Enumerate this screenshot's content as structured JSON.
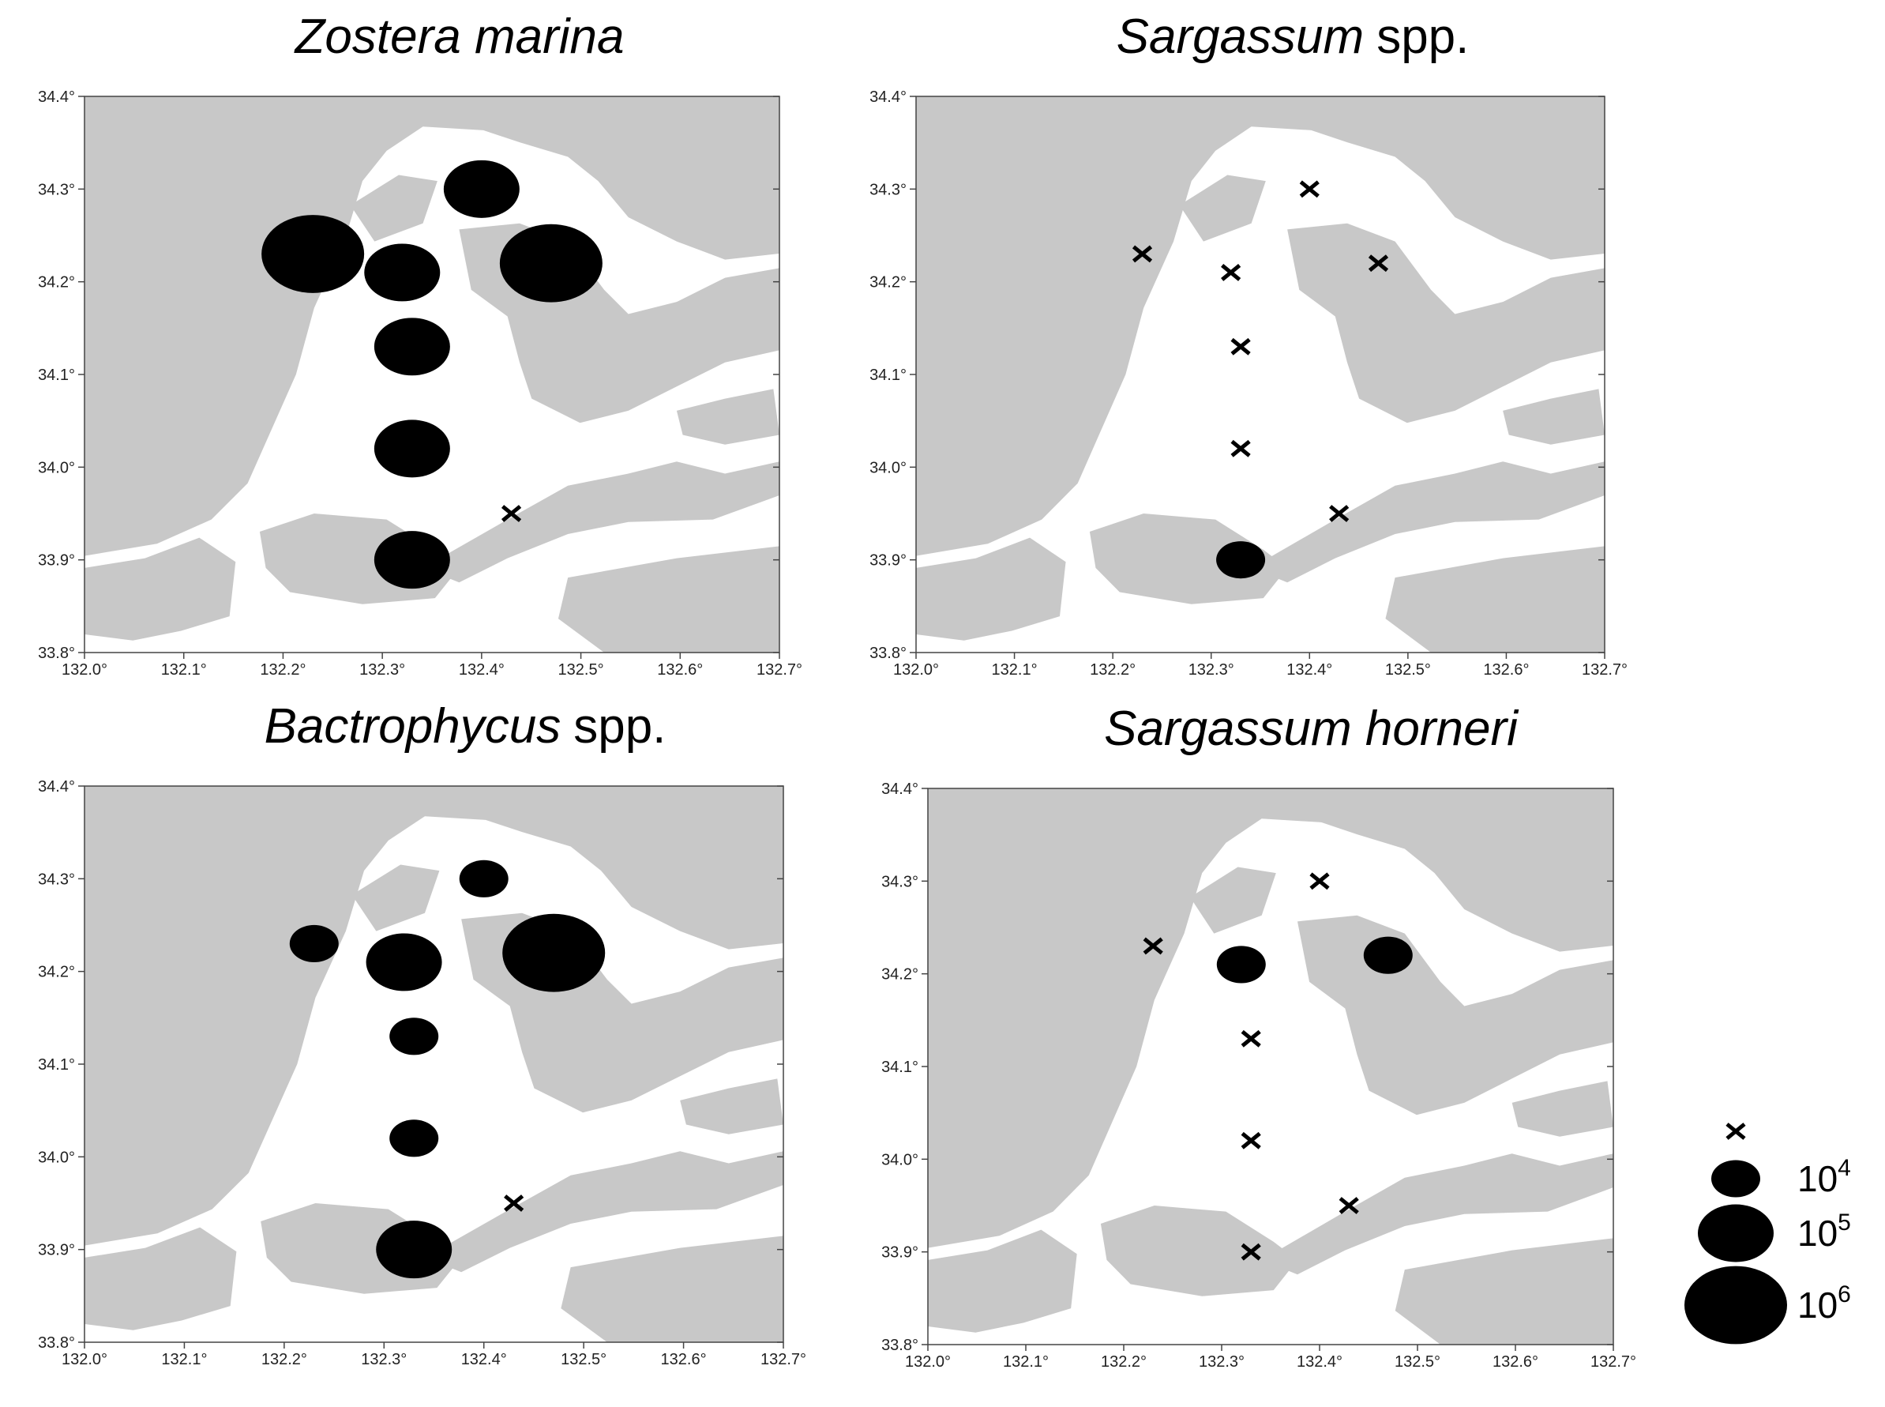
{
  "lon_lim": [
    132.0,
    132.7
  ],
  "lat_lim": [
    33.8,
    34.4
  ],
  "xticks": [
    {
      "value": 132.0,
      "label": "132.0°"
    },
    {
      "value": 132.1,
      "label": "132.1°"
    },
    {
      "value": 132.2,
      "label": "132.2°"
    },
    {
      "value": 132.3,
      "label": "132.3°"
    },
    {
      "value": 132.4,
      "label": "132.4°"
    },
    {
      "value": 132.5,
      "label": "132.5°"
    },
    {
      "value": 132.6,
      "label": "132.6°"
    },
    {
      "value": 132.7,
      "label": "132.7°"
    }
  ],
  "yticks": [
    {
      "value": 33.8,
      "label": "33.8°"
    },
    {
      "value": 33.9,
      "label": "33.9°"
    },
    {
      "value": 34.0,
      "label": "34.0°"
    },
    {
      "value": 34.1,
      "label": "34.1°"
    },
    {
      "value": 34.2,
      "label": "34.2°"
    },
    {
      "value": 34.3,
      "label": "34.3°"
    },
    {
      "value": 34.4,
      "label": "34.4°"
    }
  ],
  "stations": [
    {
      "lon": 132.4,
      "lat": 34.3
    },
    {
      "lon": 132.23,
      "lat": 34.23
    },
    {
      "lon": 132.32,
      "lat": 34.21
    },
    {
      "lon": 132.47,
      "lat": 34.22
    },
    {
      "lon": 132.33,
      "lat": 34.13
    },
    {
      "lon": 132.33,
      "lat": 34.02
    },
    {
      "lon": 132.33,
      "lat": 33.9
    },
    {
      "lon": 132.43,
      "lat": 33.95
    }
  ],
  "panels": [
    {
      "title_italic": "Zostera marina",
      "abundance": [
        100000,
        1000000,
        100000,
        1000000,
        100000,
        100000,
        100000,
        0
      ]
    },
    {
      "title_italic": "Sargassum",
      "title_suffix": "spp.",
      "abundance": [
        0,
        0,
        0,
        0,
        0,
        0,
        10000,
        0
      ]
    },
    {
      "title_italic": "Bactrophycus",
      "title_suffix": "spp.",
      "abundance": [
        10000,
        10000,
        100000,
        1000000,
        10000,
        10000,
        100000,
        0
      ]
    },
    {
      "title_italic": "Sargassum horneri",
      "abundance": [
        0,
        0,
        10000,
        10000,
        0,
        0,
        0,
        0
      ]
    }
  ],
  "legend": [
    {
      "value": 0
    },
    {
      "value": 10000,
      "label": "10",
      "exponent": "4"
    },
    {
      "value": 100000,
      "label": "10",
      "exponent": "5"
    },
    {
      "value": 1000000,
      "label": "10",
      "exponent": "6"
    }
  ]
}
